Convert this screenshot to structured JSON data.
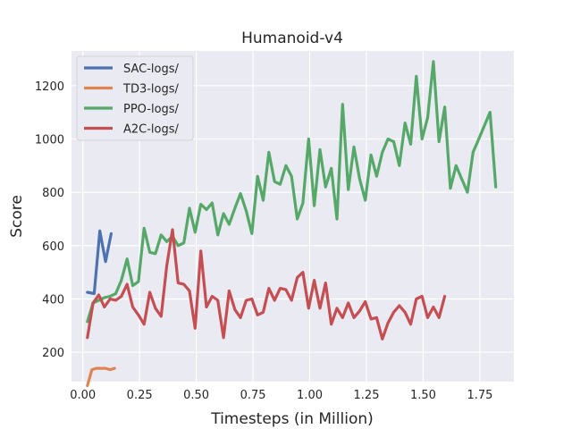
{
  "chart_data": {
    "type": "line",
    "title": "Humanoid-v4",
    "xlabel": "Timesteps (in Million)",
    "ylabel": "Score",
    "xlim": [
      -0.05,
      1.9
    ],
    "ylim": [
      90,
      1330
    ],
    "x_ticks": [
      0.0,
      0.25,
      0.5,
      0.75,
      1.0,
      1.25,
      1.5,
      1.75
    ],
    "x_tick_labels": [
      "0.00",
      "0.25",
      "0.50",
      "0.75",
      "1.00",
      "1.25",
      "1.50",
      "1.75"
    ],
    "y_ticks": [
      200,
      400,
      600,
      800,
      1000,
      1200
    ],
    "y_tick_labels": [
      "200",
      "400",
      "600",
      "800",
      "1000",
      "1200"
    ],
    "grid": true,
    "legend_position": "top-left",
    "series": [
      {
        "name": "SAC-logs/",
        "color": "#4c72b0",
        "x": [
          0.02,
          0.05,
          0.075,
          0.1,
          0.125
        ],
        "y": [
          425,
          420,
          655,
          540,
          645
        ]
      },
      {
        "name": "TD3-logs/",
        "color": "#dd8452",
        "x": [
          0.02,
          0.04,
          0.06,
          0.08,
          0.1,
          0.12,
          0.14
        ],
        "y": [
          75,
          135,
          140,
          140,
          140,
          135,
          140
        ]
      },
      {
        "name": "PPO-logs/",
        "color": "#55a868",
        "x": [
          0.02,
          0.045,
          0.07,
          0.095,
          0.12,
          0.145,
          0.17,
          0.195,
          0.22,
          0.245,
          0.27,
          0.295,
          0.32,
          0.345,
          0.37,
          0.395,
          0.42,
          0.445,
          0.47,
          0.495,
          0.52,
          0.545,
          0.57,
          0.595,
          0.62,
          0.645,
          0.67,
          0.695,
          0.72,
          0.745,
          0.77,
          0.795,
          0.82,
          0.845,
          0.87,
          0.895,
          0.92,
          0.945,
          0.97,
          0.995,
          1.02,
          1.045,
          1.07,
          1.095,
          1.12,
          1.145,
          1.17,
          1.195,
          1.22,
          1.245,
          1.27,
          1.295,
          1.32,
          1.345,
          1.37,
          1.395,
          1.42,
          1.445,
          1.47,
          1.495,
          1.52,
          1.545,
          1.57,
          1.595,
          1.62,
          1.645,
          1.67,
          1.695,
          1.72,
          1.745,
          1.77,
          1.795,
          1.82
        ],
        "y": [
          315,
          385,
          395,
          405,
          410,
          420,
          470,
          550,
          450,
          465,
          665,
          575,
          570,
          640,
          615,
          635,
          600,
          610,
          740,
          650,
          755,
          735,
          760,
          640,
          720,
          680,
          740,
          795,
          730,
          645,
          860,
          770,
          950,
          840,
          830,
          900,
          860,
          700,
          760,
          1000,
          750,
          960,
          820,
          890,
          700,
          1130,
          810,
          970,
          850,
          770,
          940,
          860,
          950,
          1000,
          990,
          900,
          1060,
          980,
          1235,
          1000,
          1080,
          1290,
          990,
          1120,
          815,
          900,
          850,
          800,
          950,
          1000,
          1050,
          1100,
          820
        ]
      },
      {
        "name": "A2C-logs/",
        "color": "#c44e52",
        "x": [
          0.02,
          0.045,
          0.07,
          0.095,
          0.12,
          0.145,
          0.17,
          0.195,
          0.22,
          0.245,
          0.27,
          0.295,
          0.32,
          0.345,
          0.37,
          0.395,
          0.42,
          0.445,
          0.47,
          0.495,
          0.52,
          0.545,
          0.57,
          0.595,
          0.62,
          0.645,
          0.67,
          0.695,
          0.72,
          0.745,
          0.77,
          0.795,
          0.82,
          0.845,
          0.87,
          0.895,
          0.92,
          0.945,
          0.97,
          0.995,
          1.02,
          1.045,
          1.07,
          1.095,
          1.12,
          1.145,
          1.17,
          1.195,
          1.22,
          1.245,
          1.27,
          1.295,
          1.32,
          1.345,
          1.37,
          1.395,
          1.42,
          1.445,
          1.47,
          1.495,
          1.52,
          1.545,
          1.57,
          1.595
        ],
        "y": [
          255,
          385,
          415,
          370,
          400,
          395,
          410,
          455,
          370,
          340,
          305,
          425,
          365,
          335,
          525,
          660,
          460,
          455,
          430,
          290,
          580,
          370,
          410,
          395,
          255,
          430,
          360,
          330,
          395,
          400,
          340,
          350,
          440,
          395,
          440,
          435,
          395,
          480,
          500,
          365,
          470,
          365,
          460,
          305,
          365,
          330,
          385,
          330,
          355,
          390,
          325,
          330,
          250,
          310,
          350,
          375,
          350,
          305,
          400,
          410,
          330,
          370,
          330,
          410
        ]
      }
    ]
  }
}
